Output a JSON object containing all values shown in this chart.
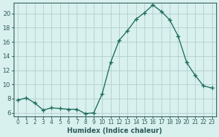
{
  "x": [
    0,
    1,
    2,
    3,
    4,
    5,
    6,
    7,
    8,
    9,
    10,
    11,
    12,
    13,
    14,
    15,
    16,
    17,
    18,
    19,
    20,
    21,
    22,
    23
  ],
  "y": [
    7.8,
    8.1,
    7.4,
    6.4,
    6.7,
    6.6,
    6.5,
    6.5,
    5.9,
    6.0,
    8.7,
    13.1,
    16.2,
    17.6,
    19.2,
    20.1,
    21.2,
    20.3,
    19.1,
    16.8,
    13.1,
    11.3,
    9.8,
    9.5
  ],
  "line_color": "#1a6b5a",
  "marker": "+",
  "marker_size": 5,
  "bg_color": "#d8f0ee",
  "grid_color": "#b0cccc",
  "tick_color": "#2d5a5a",
  "xlabel": "Humidex (Indice chaleur)",
  "ylabel_ticks": [
    6,
    8,
    10,
    12,
    14,
    16,
    18,
    20
  ],
  "ylim": [
    5.5,
    21.5
  ],
  "xlim": [
    -0.5,
    23.5
  ]
}
